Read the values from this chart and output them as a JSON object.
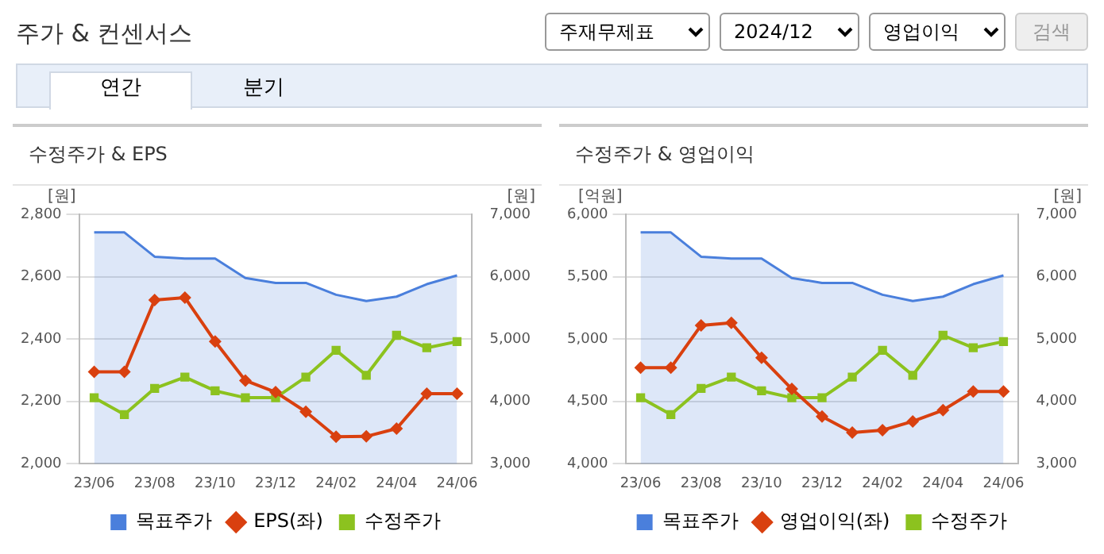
{
  "chart_data": [
    {
      "type": "other",
      "title": "주가 & 컨센서스",
      "annotations": [
        "주재무제표",
        "2024/12",
        "영업이익",
        "검색",
        "연간",
        "분기"
      ]
    },
    {
      "type": "line",
      "title": "수정주가 & EPS",
      "ylabel": "[원]",
      "y2label": "[원]",
      "categories": [
        "23/06",
        null,
        "23/08",
        null,
        "23/10",
        null,
        "23/12",
        null,
        "24/02",
        null,
        "24/04",
        null,
        "24/06"
      ],
      "ylim": [
        2000,
        2800
      ],
      "yticks": [
        {
          "value": 2000,
          "label": "2,000"
        },
        {
          "value": 2200,
          "label": "2,200"
        },
        {
          "value": 2400,
          "label": "2,400"
        },
        {
          "value": 2600,
          "label": "2,600"
        },
        {
          "value": 2800,
          "label": "2,800"
        }
      ],
      "y2lim": [
        3000,
        7000
      ],
      "y2ticks": [
        {
          "value": 3000,
          "label": "3,000"
        },
        {
          "value": 4000,
          "label": "4,000"
        },
        {
          "value": 5000,
          "label": "5,000"
        },
        {
          "value": 6000,
          "label": "6,000"
        },
        {
          "value": 7000,
          "label": "7,000"
        }
      ],
      "grid": "y",
      "legend": "bottom",
      "series": [
        {
          "name": "목표주가",
          "type": "area",
          "axis": "y2",
          "color": "#4a7fdc",
          "marker": "none",
          "values": [
            6710,
            6710,
            6320,
            6290,
            6290,
            5980,
            5900,
            5900,
            5710,
            5610,
            5680,
            5880,
            6020
          ]
        },
        {
          "name": "EPS(좌)",
          "color": "#d9400f",
          "marker": "diamond",
          "values": [
            2295,
            2295,
            2525,
            2533,
            2392,
            2267,
            2230,
            2167,
            2087,
            2088,
            2113,
            2225,
            2225
          ]
        },
        {
          "name": "수정주가",
          "axis": "y2",
          "color": "#8cc21f",
          "marker": "square",
          "values": [
            4060,
            3790,
            4210,
            4390,
            4170,
            4060,
            4060,
            4390,
            4820,
            4420,
            5060,
            4860,
            4960
          ]
        }
      ]
    },
    {
      "type": "line",
      "title": "수정주가 & 영업이익",
      "ylabel": "[억원]",
      "y2label": "[원]",
      "categories": [
        "23/06",
        null,
        "23/08",
        null,
        "23/10",
        null,
        "23/12",
        null,
        "24/02",
        null,
        "24/04",
        null,
        "24/06"
      ],
      "ylim": [
        4000,
        6000
      ],
      "yticks": [
        {
          "value": 4000,
          "label": "4,000"
        },
        {
          "value": 4500,
          "label": "4,500"
        },
        {
          "value": 5000,
          "label": "5,000"
        },
        {
          "value": 5500,
          "label": "5,500"
        },
        {
          "value": 6000,
          "label": "6,000"
        }
      ],
      "y2lim": [
        3000,
        7000
      ],
      "y2ticks": [
        {
          "value": 3000,
          "label": "3,000"
        },
        {
          "value": 4000,
          "label": "4,000"
        },
        {
          "value": 5000,
          "label": "5,000"
        },
        {
          "value": 6000,
          "label": "6,000"
        },
        {
          "value": 7000,
          "label": "7,000"
        }
      ],
      "grid": "y",
      "legend": "bottom",
      "series": [
        {
          "name": "목표주가",
          "type": "area",
          "axis": "y2",
          "color": "#4a7fdc",
          "marker": "none",
          "values": [
            6710,
            6710,
            6320,
            6290,
            6290,
            5980,
            5900,
            5900,
            5710,
            5610,
            5680,
            5880,
            6020
          ]
        },
        {
          "name": "영업이익(좌)",
          "color": "#d9400f",
          "marker": "diamond",
          "values": [
            4770,
            4770,
            5110,
            5130,
            4850,
            4600,
            4380,
            4250,
            4270,
            4340,
            4430,
            4580,
            4580
          ]
        },
        {
          "name": "수정주가",
          "axis": "y2",
          "color": "#8cc21f",
          "marker": "square",
          "values": [
            4060,
            3790,
            4210,
            4390,
            4170,
            4060,
            4060,
            4390,
            4820,
            4420,
            5060,
            4860,
            4960
          ]
        }
      ]
    }
  ]
}
